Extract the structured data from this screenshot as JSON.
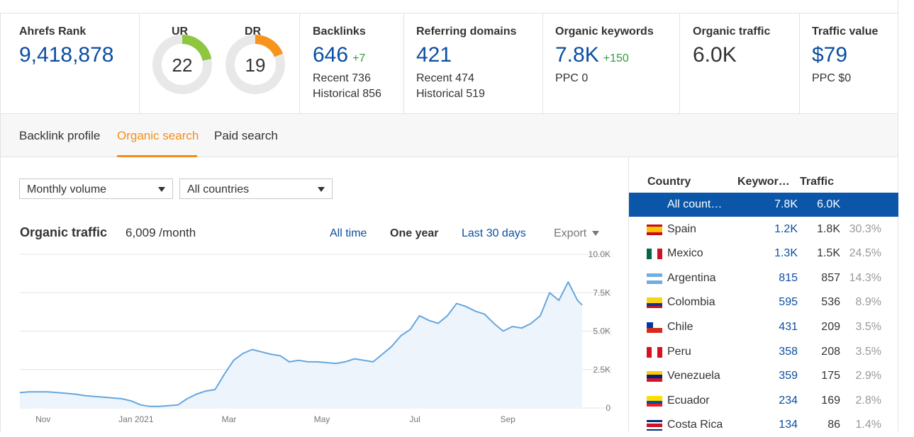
{
  "metrics": {
    "ahrefs_rank": {
      "label": "Ahrefs Rank",
      "value": "9,418,878"
    },
    "ur": {
      "label": "UR",
      "value": "22",
      "fraction": 0.22,
      "color": "#8dc63f"
    },
    "dr": {
      "label": "DR",
      "value": "19",
      "fraction": 0.19,
      "color": "#f7941d"
    },
    "backlinks": {
      "label": "Backlinks",
      "value": "646",
      "delta": "+7",
      "recent": "Recent 736",
      "historical": "Historical 856"
    },
    "referring_domains": {
      "label": "Referring domains",
      "value": "421",
      "recent": "Recent 474",
      "historical": "Historical 519"
    },
    "organic_keywords": {
      "label": "Organic keywords",
      "value": "7.8K",
      "delta": "+150",
      "ppc": "PPC 0"
    },
    "organic_traffic": {
      "label": "Organic traffic",
      "value": "6.0K"
    },
    "traffic_value": {
      "label": "Traffic value",
      "value": "$79",
      "ppc": "PPC $0"
    }
  },
  "tabs": [
    "Backlink profile",
    "Organic search",
    "Paid search"
  ],
  "active_tab": "Organic search",
  "filters": {
    "volume": "Monthly volume",
    "countries": "All countries"
  },
  "chart_header": {
    "title": "Organic traffic",
    "value": "6,009 /month",
    "ranges": [
      "All time",
      "One year",
      "Last 30 days"
    ],
    "selected_range": "One year",
    "export": "Export"
  },
  "chart_data": {
    "type": "area",
    "title": "",
    "xlabel": "",
    "ylabel": "",
    "ylim": [
      0,
      10000
    ],
    "y_ticks": [
      "10.0K",
      "7.5K",
      "5.0K",
      "2.5K",
      "0"
    ],
    "y_tick_values": [
      10000,
      7500,
      5000,
      2500,
      0
    ],
    "x_tick_labels": [
      "Nov",
      "Jan 2021",
      "Mar",
      "May",
      "Jul",
      "Sep"
    ],
    "x_tick_positions": [
      0.5,
      2.5,
      4.5,
      6.5,
      8.5,
      10.5
    ],
    "x_range": [
      0,
      12.1
    ],
    "grid": true,
    "color": "#64a7e0",
    "fill": "#eef4fb",
    "series": [
      {
        "x": [
          0,
          0.2,
          0.4,
          0.6,
          0.8,
          1.0,
          1.2,
          1.4,
          1.6,
          1.8,
          2.0,
          2.2,
          2.4,
          2.6,
          2.8,
          3.0,
          3.2,
          3.4,
          3.6,
          3.8,
          4.0,
          4.2,
          4.4,
          4.6,
          4.8,
          5.0,
          5.2,
          5.4,
          5.6,
          5.8,
          6.0,
          6.2,
          6.4,
          6.6,
          6.8,
          7.0,
          7.2,
          7.4,
          7.6,
          7.8,
          8.0,
          8.2,
          8.4,
          8.6,
          8.8,
          9.0,
          9.2,
          9.4,
          9.6,
          9.8,
          10.0,
          10.2,
          10.4,
          10.6,
          10.8,
          11.0,
          11.2,
          11.4,
          11.6,
          11.8,
          12.0,
          12.1
        ],
        "values": [
          1000,
          1050,
          1050,
          1050,
          1000,
          950,
          900,
          800,
          750,
          700,
          650,
          600,
          450,
          200,
          100,
          100,
          150,
          200,
          600,
          900,
          1100,
          1200,
          2200,
          3100,
          3550,
          3800,
          3650,
          3500,
          3400,
          3000,
          3100,
          3000,
          3000,
          2950,
          2900,
          3000,
          3200,
          3100,
          3000,
          3500,
          4000,
          4700,
          5100,
          6000,
          5700,
          5500,
          6000,
          6800,
          6600,
          6300,
          6100,
          5500,
          5000,
          5300,
          5200,
          5500,
          6000,
          7500,
          7000,
          8200,
          7000,
          6700
        ]
      }
    ]
  },
  "country_table": {
    "headers": {
      "country": "Country",
      "keywords": "Keywor…",
      "traffic": "Traffic"
    },
    "rows": [
      {
        "name": "All count…",
        "keywords": "7.8K",
        "traffic": "6.0K",
        "pct": "",
        "flag": "none"
      },
      {
        "name": "Spain",
        "keywords": "1.2K",
        "traffic": "1.8K",
        "pct": "30.3%",
        "flag": "spain-flag-icon"
      },
      {
        "name": "Mexico",
        "keywords": "1.3K",
        "traffic": "1.5K",
        "pct": "24.5%",
        "flag": "mexico-flag-icon"
      },
      {
        "name": "Argentina",
        "keywords": "815",
        "traffic": "857",
        "pct": "14.3%",
        "flag": "argentina-flag-icon"
      },
      {
        "name": "Colombia",
        "keywords": "595",
        "traffic": "536",
        "pct": "8.9%",
        "flag": "colombia-flag-icon"
      },
      {
        "name": "Chile",
        "keywords": "431",
        "traffic": "209",
        "pct": "3.5%",
        "flag": "chile-flag-icon"
      },
      {
        "name": "Peru",
        "keywords": "358",
        "traffic": "208",
        "pct": "3.5%",
        "flag": "peru-flag-icon"
      },
      {
        "name": "Venezuela",
        "keywords": "359",
        "traffic": "175",
        "pct": "2.9%",
        "flag": "venezuela-flag-icon"
      },
      {
        "name": "Ecuador",
        "keywords": "234",
        "traffic": "169",
        "pct": "2.8%",
        "flag": "ecuador-flag-icon"
      },
      {
        "name": "Costa Rica",
        "keywords": "134",
        "traffic": "86",
        "pct": "1.4%",
        "flag": "costa-rica-flag-icon"
      }
    ]
  }
}
